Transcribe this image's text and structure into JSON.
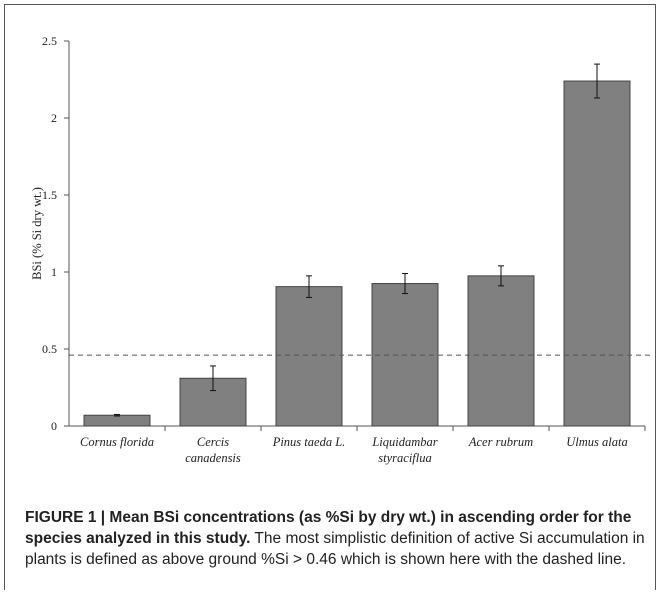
{
  "chart_data": {
    "type": "bar",
    "categories": [
      [
        "Cornus florida"
      ],
      [
        "Cercis",
        "canadensis"
      ],
      [
        "Pinus taeda L."
      ],
      [
        "Liquidambar",
        "styraciflua"
      ],
      [
        "Acer rubrum"
      ],
      [
        "Ulmus alata"
      ]
    ],
    "values": [
      0.07,
      0.31,
      0.905,
      0.925,
      0.975,
      2.24
    ],
    "errors": [
      0.005,
      0.08,
      0.07,
      0.065,
      0.065,
      0.11
    ],
    "ylabel": "BSi (% Si dry wt.)",
    "ylim": [
      0,
      2.5
    ],
    "yticks": [
      0,
      0.5,
      1,
      1.5,
      2,
      2.5
    ],
    "ytick_labels": [
      "0",
      "0.5",
      "1",
      "1.5",
      "2",
      "2.5"
    ],
    "reference_line": 0.46,
    "bar_color": "#808080",
    "grid": false
  },
  "caption": {
    "bold": "FIGURE 1 | Mean BSi concentrations (as %Si by dry wt.) in ascending order for the species analyzed in this study.",
    "text": " The most simplistic definition of active Si accumulation in plants is defined as above ground %Si > 0.46 which is shown here with the dashed line."
  }
}
